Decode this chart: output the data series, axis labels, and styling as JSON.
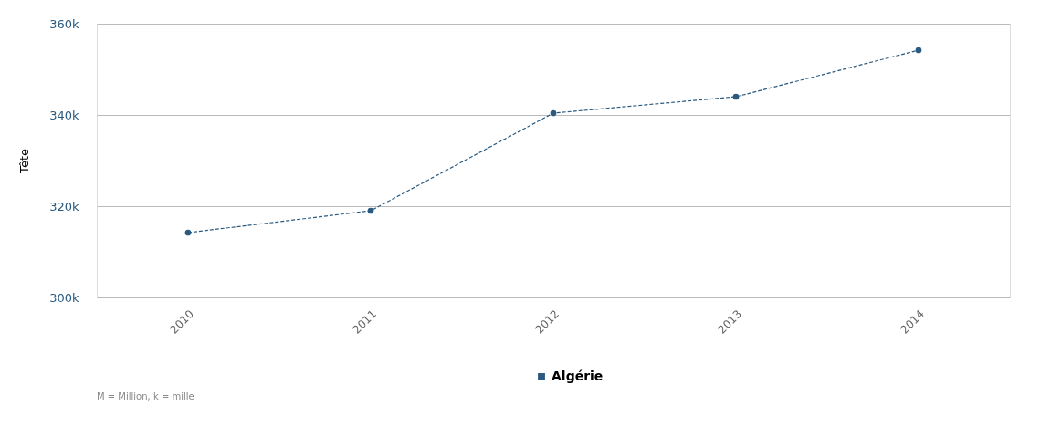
{
  "chart_data": {
    "type": "line",
    "ylabel": "Tête",
    "categories": [
      "2010",
      "2011",
      "2012",
      "2013",
      "2014"
    ],
    "series": [
      {
        "name": "Algérie",
        "color": "#2a5a80",
        "values": [
          314.2,
          319.0,
          340.4,
          344.0,
          354.2
        ]
      }
    ],
    "ylim": [
      300,
      360
    ],
    "yticks": [
      {
        "value": 300,
        "label": "300k"
      },
      {
        "value": 320,
        "label": "320k"
      },
      {
        "value": 340,
        "label": "340k"
      },
      {
        "value": 360,
        "label": "360k"
      }
    ],
    "grid": "y",
    "legend": "bottom",
    "marker": "circle",
    "line_style": "dashed",
    "annotations": [
      "M = Million, k = mille"
    ]
  }
}
